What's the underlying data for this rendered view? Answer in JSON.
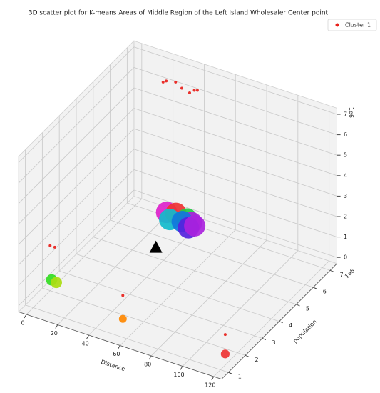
{
  "chart_data": {
    "type": "scatter3d",
    "title": "3D scatter plot for K-means Areas of Middle Region of the Left Island Wholesaler Center point",
    "xlabel": "Distance",
    "ylabel": "population",
    "y_offset_label": "1e6",
    "z_offset_label": "1e6",
    "xlim": [
      -5,
      125
    ],
    "ylim": [
      0.6,
      7.4
    ],
    "zlim": [
      -0.3,
      7.3
    ],
    "xticks": [
      0,
      20,
      40,
      60,
      80,
      100,
      120
    ],
    "yticks": [
      1,
      2,
      3,
      4,
      5,
      6,
      7
    ],
    "zticks": [
      0,
      1,
      2,
      3,
      4,
      5,
      6,
      7
    ],
    "grid": true,
    "legend": "upper right",
    "series": [
      {
        "name": "Cluster 1",
        "color": "#e8201a",
        "x": [
          18,
          20,
          26,
          30,
          35,
          38,
          40,
          0,
          3,
          1,
          4,
          42,
          48,
          44,
          55,
          58,
          52,
          56,
          60,
          46,
          52,
          52,
          123,
          123
        ],
        "y": [
          7,
          7,
          7,
          7,
          7,
          7,
          7,
          2,
          2,
          2,
          2,
          5,
          5,
          5,
          5,
          5,
          5,
          5,
          5,
          4,
          1.5,
          1.5,
          1,
          1
        ],
        "z": [
          6.2,
          6.3,
          6.4,
          6.2,
          6.1,
          6.3,
          6.35,
          1.9,
          1.9,
          0.25,
          0.2,
          2.1,
          2.2,
          1.8,
          2.1,
          2.0,
          1.9,
          1.7,
          1.9,
          1.3,
          1.2,
          0.05,
          1.5,
          0.55
        ],
        "sizes": [
          16,
          16,
          16,
          16,
          16,
          16,
          16,
          16,
          16,
          250,
          250,
          900,
          900,
          900,
          900,
          900,
          900,
          900,
          900,
          16,
          16,
          120,
          16,
          150
        ],
        "colors": [
          "#e8201a",
          "#e8201a",
          "#e8201a",
          "#e8201a",
          "#e8201a",
          "#e8201a",
          "#e8201a",
          "#e8201a",
          "#e8201a",
          "#33dd22",
          "#aadd11",
          "#dd22cc",
          "#ee3333",
          "#11bbcc",
          "#22cc44",
          "#aa22dd",
          "#1177dd",
          "#5522dd",
          "#aa22dd",
          "#e8201a",
          "#e8201a",
          "#ff8800",
          "#e8201a",
          "#ee3333"
        ]
      }
    ],
    "centroid": {
      "x": 46,
      "y": 4,
      "z": 1.3,
      "color": "#000000"
    }
  }
}
